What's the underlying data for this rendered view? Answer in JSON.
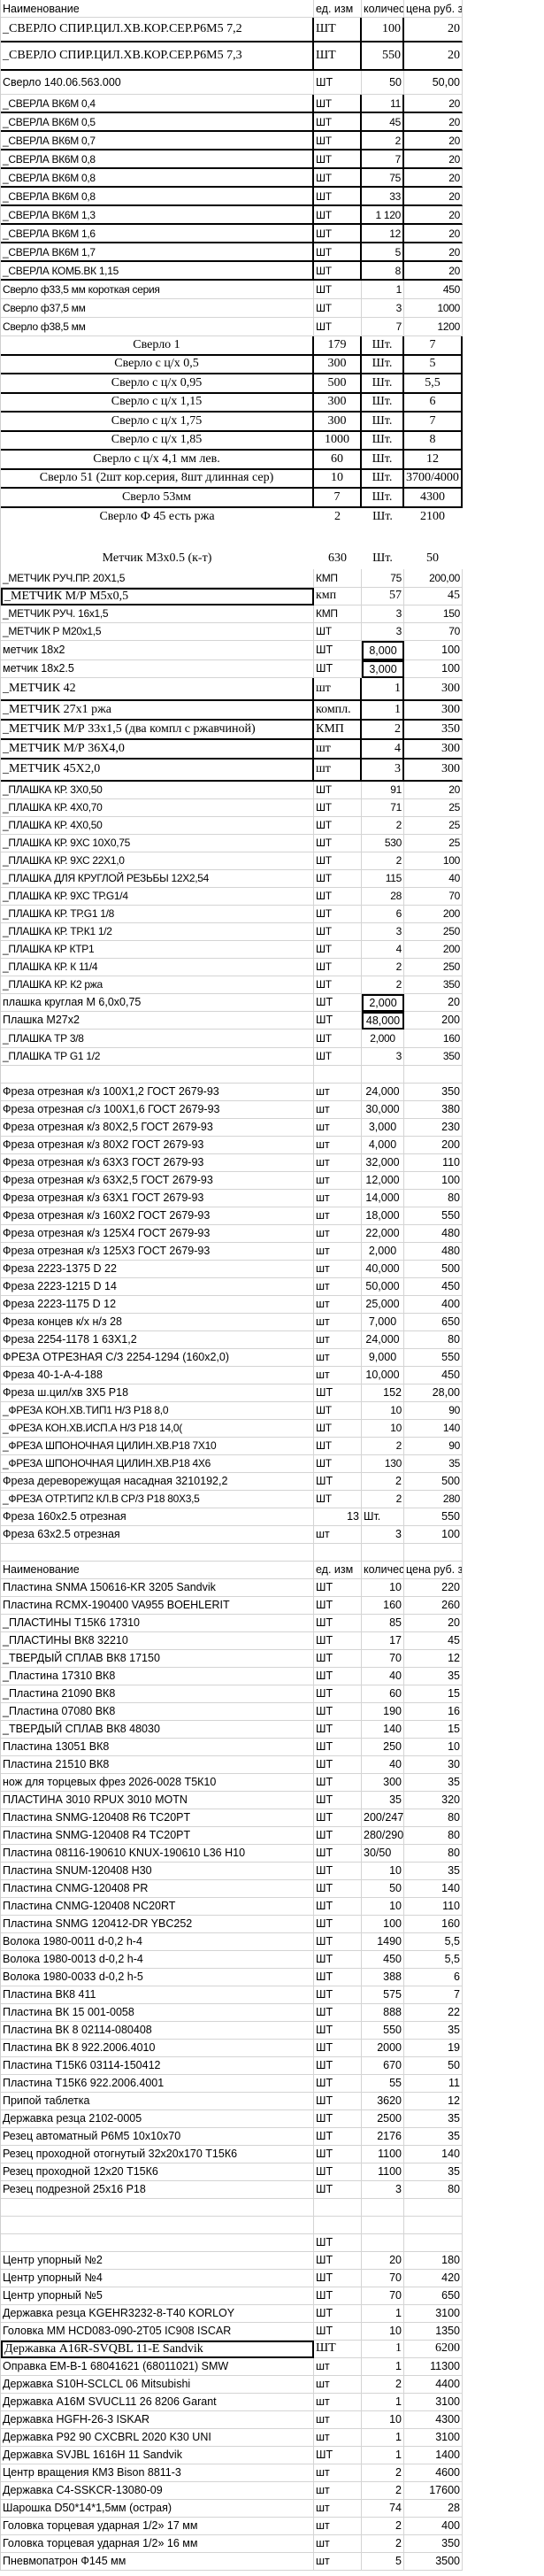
{
  "rows": [
    {
      "name": "Наименование",
      "unit": "ед. изм",
      "qty": "количес",
      "price": "цена руб. за"
    },
    {
      "name": "_СВЕРЛО СПИР.ЦИЛ.ХВ.КОР.СЕР.Р6М5 7,2",
      "unit": "ШТ",
      "qty": "100",
      "price": "20"
    },
    {
      "name": "_СВЕРЛО СПИР.ЦИЛ.ХВ.КОР.СЕР.Р6М5 7,3",
      "unit": "ШТ",
      "qty": "550",
      "price": "20"
    },
    {
      "name": "Сверло 140.06.563.000",
      "unit": "ШТ",
      "qty": "50",
      "price": "50,00"
    },
    {
      "name": "_СВЕРЛА ВК6М 0,4",
      "unit": "ШТ",
      "qty": "11",
      "price": "20"
    },
    {
      "name": "_СВЕРЛА ВК6М 0,5",
      "unit": "ШТ",
      "qty": "45",
      "price": "20"
    },
    {
      "name": "_СВЕРЛА ВК6М 0,7",
      "unit": "ШТ",
      "qty": "2",
      "price": "20"
    },
    {
      "name": "_СВЕРЛА ВК6М 0,8",
      "unit": "ШТ",
      "qty": "7",
      "price": "20"
    },
    {
      "name": "_СВЕРЛА ВК6М 0,8",
      "unit": "ШТ",
      "qty": "75",
      "price": "20"
    },
    {
      "name": "_СВЕРЛА ВК6М 0,8",
      "unit": "ШТ",
      "qty": "33",
      "price": "20"
    },
    {
      "name": "_СВЕРЛА ВК6М 1,3",
      "unit": "ШТ",
      "qty": "1 120",
      "price": "20"
    },
    {
      "name": "_СВЕРЛА ВК6М 1,6",
      "unit": "ШТ",
      "qty": "12",
      "price": "20"
    },
    {
      "name": "_СВЕРЛА ВК6М 1,7",
      "unit": "ШТ",
      "qty": "5",
      "price": "20"
    },
    {
      "name": "_СВЕРЛА КОМБ.ВК 1,15",
      "unit": "ШТ",
      "qty": "8",
      "price": "20"
    },
    {
      "name": "Сверло ф33,5  мм короткая серия",
      "unit": "ШТ",
      "qty": "1",
      "price": "450"
    },
    {
      "name": "Сверло ф37,5  мм",
      "unit": "ШТ",
      "qty": "3",
      "price": "1000"
    },
    {
      "name": "Сверло ф38,5  мм",
      "unit": "ШТ",
      "qty": "7",
      "price": "1200"
    },
    {
      "name": "Сверло 1",
      "unit": "179",
      "qty": "Шт.",
      "price": "7"
    },
    {
      "name": "Сверло  с ц/х 0,5",
      "unit": "300",
      "qty": "Шт.",
      "price": "5"
    },
    {
      "name": "Сверло  с ц/х 0,95",
      "unit": "500",
      "qty": "Шт.",
      "price": "5,5"
    },
    {
      "name": "Сверло  с ц/х 1,15",
      "unit": "300",
      "qty": "Шт.",
      "price": "6"
    },
    {
      "name": "Сверло  с ц/х 1,75",
      "unit": "300",
      "qty": "Шт.",
      "price": "7"
    },
    {
      "name": "Сверло  с ц/х 1,85",
      "unit": "1000",
      "qty": "Шт.",
      "price": "8"
    },
    {
      "name": "Сверло  с ц/х 4,1 мм лев.",
      "unit": "60",
      "qty": "Шт.",
      "price": "12"
    },
    {
      "name": "Сверло 51 (2шт кор.серия, 8шт длинная сер)",
      "unit": "10",
      "qty": "Шт.",
      "price": "3700/4000"
    },
    {
      "name": "Сверло 53мм",
      "unit": "7",
      "qty": "Шт.",
      "price": "4300"
    },
    {
      "name": "Сверло Ф 45  есть ржа",
      "unit": "2",
      "qty": "Шт.",
      "price": "2100"
    },
    {
      "name": "",
      "unit": "",
      "qty": "",
      "price": ""
    },
    {
      "name": "Метчик М3х0.5  (к-т)",
      "unit": "630",
      "qty": "Шт.",
      "price": "50"
    },
    {
      "name": "_МЕТЧИК РУЧ.ПР.  20Х1,5",
      "unit": "КМП",
      "qty": "75",
      "price": "200,00"
    },
    {
      "name": "_МЕТЧИК М/Р  М5х0,5",
      "unit": "кмп",
      "qty": "57",
      "price": "45"
    },
    {
      "name": "_МЕТЧИК РУЧ.  16х1,5",
      "unit": "КМП",
      "qty": "3",
      "price": "150"
    },
    {
      "name": "_МЕТЧИК Р  М20х1,5",
      "unit": "ШТ",
      "qty": "3",
      "price": "70"
    },
    {
      "name": "метчик 18х2",
      "unit": "ШТ",
      "qty": "8,000",
      "price": "100"
    },
    {
      "name": "метчик 18х2.5",
      "unit": "ШТ",
      "qty": "3,000",
      "price": "100"
    },
    {
      "name": "_МЕТЧИК   42",
      "unit": "шт",
      "qty": "1",
      "price": "300"
    },
    {
      "name": "_МЕТЧИК      27х1 ржа",
      "unit": "компл.",
      "qty": "1",
      "price": "300"
    },
    {
      "name": "_МЕТЧИК М/Р   33х1,5  (два компл с ржавчиной)",
      "unit": "КМП",
      "qty": "2",
      "price": "350"
    },
    {
      "name": "_МЕТЧИК М/Р    36Х4,0",
      "unit": "шт",
      "qty": "4",
      "price": "300"
    },
    {
      "name": "_МЕТЧИК   45Х2,0",
      "unit": "шт",
      "qty": "3",
      "price": "300"
    },
    {
      "name": "_ПЛАШКА КР.   3Х0,50",
      "unit": "ШТ",
      "qty": "91",
      "price": "20"
    },
    {
      "name": "_ПЛАШКА КР.  4Х0,70",
      "unit": "ШТ",
      "qty": "71",
      "price": "25"
    },
    {
      "name": "_ПЛАШКА КР.  4Х0,50",
      "unit": "ШТ",
      "qty": "2",
      "price": "25"
    },
    {
      "name": "_ПЛАШКА КР. 9ХС 10Х0,75",
      "unit": "ШТ",
      "qty": "530",
      "price": "25"
    },
    {
      "name": "_ПЛАШКА КР. 9ХС 22Х1,0",
      "unit": "ШТ",
      "qty": "2",
      "price": "100"
    },
    {
      "name": "_ПЛАШКА ДЛЯ КРУГЛОЙ РЕЗЬБЫ 12Х2,54",
      "unit": "ШТ",
      "qty": "115",
      "price": "40"
    },
    {
      "name": "_ПЛАШКА КР. 9ХС ТР.G1/4",
      "unit": "ШТ",
      "qty": "28",
      "price": "70"
    },
    {
      "name": "_ПЛАШКА КР.  ТР.G1 1/8",
      "unit": "ШТ",
      "qty": "6",
      "price": "200"
    },
    {
      "name": "_ПЛАШКА КР. ТР.К1 1/2",
      "unit": "ШТ",
      "qty": "3",
      "price": "250"
    },
    {
      "name": "_ПЛАШКА КР  КТР1",
      "unit": "ШТ",
      "qty": "4",
      "price": "200"
    },
    {
      "name": "_ПЛАШКА КР.  К 11/4",
      "unit": "ШТ",
      "qty": "2",
      "price": "250"
    },
    {
      "name": "_ПЛАШКА КР.  К2 ржа",
      "unit": "ШТ",
      "qty": "2",
      "price": "350"
    },
    {
      "name": "плашка круглая М 6,0х0,75",
      "unit": "ШТ",
      "qty": "2,000",
      "price": "20"
    },
    {
      "name": "Плашка М27х2",
      "unit": "ШТ",
      "qty": "48,000",
      "price": "200"
    },
    {
      "name": "_ПЛАШКА  ТР 3/8",
      "unit": "ШТ",
      "qty": "2,000",
      "price": "160"
    },
    {
      "name": "_ПЛАШКА  ТР G1 1/2",
      "unit": "ШТ",
      "qty": "3",
      "price": "350"
    },
    {
      "name": "",
      "unit": "",
      "qty": "",
      "price": ""
    },
    {
      "name": "Фреза отрезная к/з 100Х1,2 ГОСТ 2679-93",
      "unit": "шт",
      "qty": "24,000",
      "price": "350"
    },
    {
      "name": "Фреза отрезная с/з 100Х1,6 ГОСТ 2679-93",
      "unit": "шт",
      "qty": "30,000",
      "price": "380"
    },
    {
      "name": "Фреза отрезная к/з 80Х2,5 ГОСТ 2679-93",
      "unit": "шт",
      "qty": "3,000",
      "price": "230"
    },
    {
      "name": "Фреза отрезная к/з 80Х2 ГОСТ 2679-93",
      "unit": "шт",
      "qty": "4,000",
      "price": "200"
    },
    {
      "name": "Фреза отрезная к/з 63Х3 ГОСТ 2679-93",
      "unit": "шт",
      "qty": "32,000",
      "price": "110"
    },
    {
      "name": "Фреза отрезная к/з 63Х2,5 ГОСТ 2679-93",
      "unit": "шт",
      "qty": "12,000",
      "price": "100"
    },
    {
      "name": "Фреза отрезная к/з 63Х1 ГОСТ 2679-93",
      "unit": "шт",
      "qty": "14,000",
      "price": "80"
    },
    {
      "name": "Фреза отрезная к/з 160Х2 ГОСТ 2679-93",
      "unit": "шт",
      "qty": "18,000",
      "price": "550"
    },
    {
      "name": "Фреза отрезная к/з 125Х4 ГОСТ 2679-93",
      "unit": "шт",
      "qty": "22,000",
      "price": "480"
    },
    {
      "name": "Фреза отрезная к/з 125Х3 ГОСТ 2679-93",
      "unit": "шт",
      "qty": "2,000",
      "price": "480"
    },
    {
      "name": "Фреза 2223-1375  D 22",
      "unit": "шт",
      "qty": "40,000",
      "price": "500"
    },
    {
      "name": "Фреза 2223-1215  D 14",
      "unit": "шт",
      "qty": "50,000",
      "price": "450"
    },
    {
      "name": "Фреза 2223-1175 D 12",
      "unit": "шт",
      "qty": "25,000",
      "price": "400"
    },
    {
      "name": " Фреза концев к/х н/з 28",
      "unit": "шт",
      "qty": "7,000",
      "price": "650"
    },
    {
      "name": " Фреза 2254-1178 1 63Х1,2",
      "unit": "шт",
      "qty": "24,000",
      "price": "80"
    },
    {
      "name": "ФРЕЗА ОТРЕЗНАЯ С/З 2254-1294 (160х2,0)",
      "unit": "шт",
      "qty": "9,000",
      "price": "550"
    },
    {
      "name": "Фреза 40-1-А-4-188",
      "unit": "шт",
      "qty": "10,000",
      "price": "450"
    },
    {
      "name": "Фреза ш.цил/хв 3Х5 Р18",
      "unit": "ШТ",
      "qty": "152",
      "price": "28,00"
    },
    {
      "name": "_ФРЕЗА КОН.ХВ.ТИП1 Н/З Р18 8,0",
      "unit": "ШТ",
      "qty": "10",
      "price": "90"
    },
    {
      "name": "_ФРЕЗА КОН.ХВ.ИСП.А Н/З Р18 14,0(",
      "unit": "ШТ",
      "qty": "10",
      "price": "140"
    },
    {
      "name": "_ФРЕЗА ШПОНОЧНАЯ ЦИЛИН.ХВ.Р18 7Х10",
      "unit": "ШТ",
      "qty": "2",
      "price": "90"
    },
    {
      "name": "_ФРЕЗА ШПОНОЧНАЯ ЦИЛИН.ХВ.Р18 4Х6",
      "unit": "ШТ",
      "qty": "130",
      "price": "35"
    },
    {
      "name": "Фреза дереворежущая насадная 3210192,2",
      "unit": "ШТ",
      "qty": "2",
      "price": "500"
    },
    {
      "name": "_ФРЕЗА ОТР.ТИП2 КЛ.В СР/З Р18 80Х3,5",
      "unit": "ШТ",
      "qty": "2",
      "price": "280"
    },
    {
      "name": "Фреза 160х2.5  отрезная",
      "unit": "13",
      "qty": "Шт.",
      "price": "550"
    },
    {
      "name": "Фреза 63х2.5  отрезная",
      "unit": "шт",
      "qty": "3",
      "price": "100"
    },
    {
      "name": "",
      "unit": "",
      "qty": "",
      "price": ""
    },
    {
      "name": "Наименование",
      "unit": "ед. изм",
      "qty": "количес",
      "price": "цена руб. за"
    },
    {
      "name": "Пластина SNMA 150616-KR 3205 Sandvik",
      "unit": "ШТ",
      "qty": "10",
      "price": "220"
    },
    {
      "name": "Пластина RCMX-190400 VA955 BOEHLERIT",
      "unit": "ШТ",
      "qty": "160",
      "price": "260"
    },
    {
      "name": "_ПЛАСТИНЫ Т15К6 17310",
      "unit": "ШТ",
      "qty": "85",
      "price": "20"
    },
    {
      "name": "_ПЛАСТИНЫ ВК8 32210",
      "unit": "ШТ",
      "qty": "17",
      "price": "45"
    },
    {
      "name": "_ТВЕРДЫЙ СПЛАВ ВК8 17150",
      "unit": "ШТ",
      "qty": "70",
      "price": "12"
    },
    {
      "name": "_Пластина 17310 ВК8",
      "unit": "ШТ",
      "qty": "40",
      "price": "35"
    },
    {
      "name": "_Пластина 21090 ВК8",
      "unit": "ШТ",
      "qty": "60",
      "price": "15"
    },
    {
      "name": "_Пластина 07080 ВК8",
      "unit": "ШТ",
      "qty": "190",
      "price": "16"
    },
    {
      "name": "_ТВЕРДЫЙ СПЛАВ ВК8 48030",
      "unit": "ШТ",
      "qty": "140",
      "price": "15"
    },
    {
      "name": "Пластина 13051 ВК8",
      "unit": "ШТ",
      "qty": "250",
      "price": "10"
    },
    {
      "name": "Пластина 21510 ВК8",
      "unit": "ШТ",
      "qty": "40",
      "price": "30"
    },
    {
      "name": "нож для торцевых фрез 2026-0028 Т5К10",
      "unit": "ШТ",
      "qty": "300",
      "price": "35"
    },
    {
      "name": "ПЛАСТИНА   3010   RPUX 3010 MOTN",
      "unit": "ШТ",
      "qty": "35",
      "price": "320"
    },
    {
      "name": "Пластина SNMG-120408 R6 TC20PT",
      "unit": "ШТ",
      "qty": "200/247",
      "price": "80"
    },
    {
      "name": "Пластина SNMG-120408 R4 TC20PT",
      "unit": "ШТ",
      "qty": "280/290",
      "price": "80"
    },
    {
      "name": "Пластина 08116-190610 KNUX-190610 L36 H10",
      "unit": "ШТ",
      "qty": "30/50",
      "price": "80"
    },
    {
      "name": "Пластина SNUM-120408 H30",
      "unit": "ШТ",
      "qty": "10",
      "price": "35"
    },
    {
      "name": " Пластина CNMG-120408 PR",
      "unit": "ШТ",
      "qty": "50",
      "price": "140"
    },
    {
      "name": " Пластина CNMG-120408 NC20RT",
      "unit": "ШТ",
      "qty": "10",
      "price": "110"
    },
    {
      "name": "Пластина SNMG 120412-DR   YBC252",
      "unit": "ШТ",
      "qty": "100",
      "price": "160"
    },
    {
      "name": "Волока 1980-0011 d-0,2 h-4",
      "unit": "ШТ",
      "qty": "1490",
      "price": "5,5"
    },
    {
      "name": "Волока 1980-0013 d-0,2 h-4",
      "unit": "ШТ",
      "qty": "450",
      "price": "5,5"
    },
    {
      "name": "Волока 1980-0033 d-0,2 h-5",
      "unit": "ШТ",
      "qty": "388",
      "price": "6"
    },
    {
      "name": "Пластина ВК8 411",
      "unit": "ШТ",
      "qty": "575",
      "price": "7"
    },
    {
      "name": "Пластина ВК 15 001-0058",
      "unit": "ШТ",
      "qty": "888",
      "price": "22"
    },
    {
      "name": "Пластина ВК 8 02114-080408",
      "unit": "ШТ",
      "qty": "550",
      "price": "35"
    },
    {
      "name": "Пластина ВК 8 922.2006.4010",
      "unit": "ШТ",
      "qty": "2000",
      "price": "19"
    },
    {
      "name": "Пластина Т15К6  03114-150412",
      "unit": "ШТ",
      "qty": "670",
      "price": "50"
    },
    {
      "name": "Пластина Т15К6  922.2006.4001",
      "unit": "ШТ",
      "qty": "55",
      "price": "11"
    },
    {
      "name": "Припой таблетка",
      "unit": "ШТ",
      "qty": "3620",
      "price": "12"
    },
    {
      "name": "Державка резца 2102-0005",
      "unit": "ШТ",
      "qty": "2500",
      "price": "35"
    },
    {
      "name": "Резец автоматный Р6М5 10х10х70",
      "unit": "ШТ",
      "qty": "2176",
      "price": "35"
    },
    {
      "name": "Резец  проходной отогнутый 32х20х170 Т15К6",
      "unit": "ШТ",
      "qty": "1100",
      "price": "140"
    },
    {
      "name": "Резец проходной 12х20 Т15К6",
      "unit": "ШТ",
      "qty": "1100",
      "price": "35"
    },
    {
      "name": "Резец подрезной 25х16 Р18",
      "unit": "ШТ",
      "qty": "3",
      "price": "80"
    },
    {
      "name": "",
      "unit": "",
      "qty": "",
      "price": ""
    },
    {
      "name": "",
      "unit": "",
      "qty": "",
      "price": ""
    },
    {
      "name": "",
      "unit": "ШТ",
      "qty": "",
      "price": ""
    },
    {
      "name": "Центр упорный №2",
      "unit": "ШТ",
      "qty": "20",
      "price": "180"
    },
    {
      "name": "Центр упорный №4",
      "unit": "ШТ",
      "qty": "70",
      "price": "420"
    },
    {
      "name": "Центр упорный №5",
      "unit": "ШТ",
      "qty": "70",
      "price": "650"
    },
    {
      "name": "Державка резца  KGEHR3232-8-T40 KORLOY",
      "unit": "ШТ",
      "qty": "1",
      "price": "3100"
    },
    {
      "name": "Головка ММ HCD083-090-2T05 IC908 ISCAR",
      "unit": "ШТ",
      "qty": "10",
      "price": "1350"
    },
    {
      "name": "Державка A16R-SVQBL 11-E Sandvik",
      "unit": "ШТ",
      "qty": "1",
      "price": "6200"
    },
    {
      "name": "Оправка EM-B-1 68041621 (68011021) SMW",
      "unit": "шт",
      "qty": "1",
      "price": "11300"
    },
    {
      "name": "Державка S10H-SCLCL 06 Mitsubishi",
      "unit": "шт",
      "qty": "2",
      "price": "4400"
    },
    {
      "name": "Державка A16M SVUCL11 26 8206 Garant",
      "unit": "шт",
      "qty": "1",
      "price": "3100"
    },
    {
      "name": "Державка HGFH-26-3 ISKAR",
      "unit": "шт",
      "qty": "10",
      "price": "4300"
    },
    {
      "name": "Державка P92 90 CXCBRL 2020 K30 UNI",
      "unit": "шт",
      "qty": "1",
      "price": "3100"
    },
    {
      "name": "Державка SVJBL 1616H 11 Sandvik",
      "unit": "ШТ",
      "qty": "1",
      "price": "1400"
    },
    {
      "name": "Центр вращения КМ3 Bison 8811-3",
      "unit": "шт",
      "qty": "2",
      "price": "4600"
    },
    {
      "name": " Державка  C4-SSKCR-13080-09",
      "unit": "шт",
      "qty": "2",
      "price": "17600"
    },
    {
      "name": "Шарошка D50*14*1,5мм (острая)",
      "unit": "шт",
      "qty": "74",
      "price": "28"
    },
    {
      "name": "Головка торцевая ударная 1/2» 17 мм",
      "unit": "шт",
      "qty": "2",
      "price": "400"
    },
    {
      "name": "Головка торцевая ударная 1/2» 16 мм",
      "unit": "шт",
      "qty": "2",
      "price": "350"
    },
    {
      "name": "Пневмопатрон Ф145 мм",
      "unit": "шт",
      "qty": "5",
      "price": "3500"
    }
  ]
}
